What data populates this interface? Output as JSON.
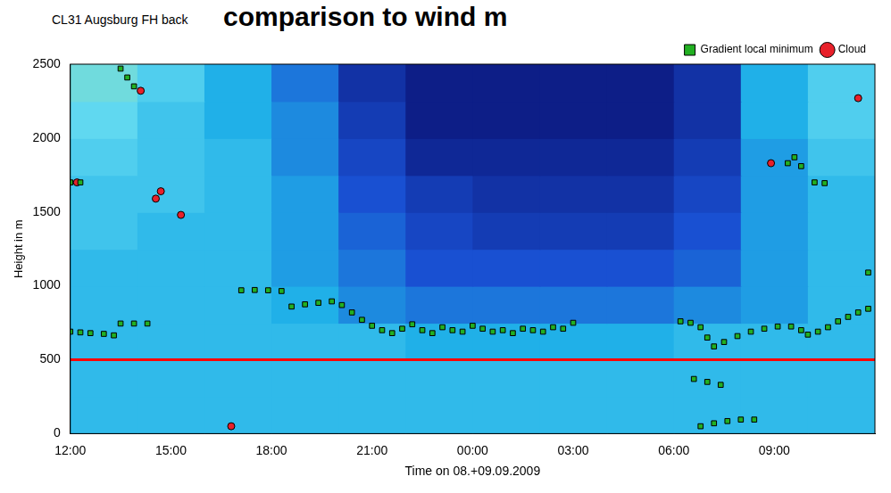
{
  "chart_data": {
    "type": "scatter",
    "title": "CL31 Augsburg FH back",
    "subtitle": "comparison to wind m",
    "x_label": "Time on 08.+09.09.2009",
    "y_label": "Height in m",
    "xlim": [
      0,
      24
    ],
    "xticks": [
      {
        "value": 0,
        "label": "12:00"
      },
      {
        "value": 3,
        "label": "15:00"
      },
      {
        "value": 6,
        "label": "18:00"
      },
      {
        "value": 9,
        "label": "21:00"
      },
      {
        "value": 12,
        "label": "00:00"
      },
      {
        "value": 15,
        "label": "03:00"
      },
      {
        "value": 18,
        "label": "06:00"
      },
      {
        "value": 21,
        "label": "09:00"
      }
    ],
    "ylim": [
      0,
      2500
    ],
    "yticks": [
      0,
      500,
      1000,
      1500,
      2000,
      2500
    ],
    "grid": false,
    "legend": "top right",
    "series": [
      {
        "name": "Gradient local minimum",
        "color": "#22b022",
        "marker": "square",
        "x": [
          0,
          0.3,
          0.6,
          1.0,
          1.3,
          1.5,
          1.9,
          2.3,
          1.5,
          1.7,
          1.9,
          5.1,
          5.5,
          5.9,
          6.3,
          6.6,
          7.0,
          7.4,
          7.8,
          8.1,
          8.4,
          8.7,
          9.0,
          9.3,
          9.6,
          9.9,
          10.2,
          10.5,
          10.8,
          11.1,
          11.4,
          11.7,
          12.0,
          12.3,
          12.6,
          12.9,
          13.2,
          13.5,
          13.8,
          14.1,
          14.4,
          14.7,
          15.0,
          18.2,
          18.5,
          18.8,
          19.0,
          18.6,
          19.0,
          19.4,
          18.8,
          19.2,
          19.6,
          20.0,
          20.4,
          19.2,
          19.5,
          19.9,
          20.3,
          20.7,
          21.1,
          21.5,
          21.8,
          22.0,
          22.3,
          22.6,
          22.9,
          23.2,
          23.5,
          23.8,
          0.0,
          0.3,
          21.4,
          21.6,
          21.8,
          22.2,
          22.5,
          23.8
        ],
        "values": [
          690,
          685,
          680,
          675,
          665,
          745,
          745,
          745,
          2470,
          2410,
          2350,
          970,
          972,
          970,
          965,
          860,
          875,
          885,
          895,
          870,
          820,
          770,
          730,
          700,
          680,
          710,
          740,
          700,
          680,
          720,
          700,
          690,
          730,
          710,
          690,
          700,
          680,
          710,
          700,
          690,
          720,
          710,
          750,
          760,
          750,
          720,
          650,
          370,
          350,
          330,
          50,
          70,
          85,
          95,
          95,
          590,
          620,
          660,
          690,
          710,
          725,
          725,
          700,
          670,
          690,
          720,
          760,
          790,
          820,
          845,
          1700,
          1700,
          1830,
          1870,
          1810,
          1700,
          1695,
          1090
        ]
      },
      {
        "name": "Cloud",
        "color": "#e8202a",
        "marker": "circle",
        "x": [
          0.2,
          2.1,
          2.55,
          2.7,
          3.3,
          4.8,
          20.9,
          23.5
        ],
        "values": [
          1700,
          2320,
          1590,
          1640,
          1480,
          50,
          1830,
          2270
        ]
      }
    ],
    "reference_line": {
      "y": 500,
      "color": "#ff0000"
    },
    "backscatter": {
      "x": [
        0,
        2,
        4,
        6,
        8,
        10,
        12,
        14,
        16,
        18,
        20,
        22,
        24
      ],
      "y": [
        0,
        250,
        500,
        750,
        1000,
        1250,
        1500,
        1750,
        2000,
        2250,
        2500
      ],
      "range": [
        0,
        1
      ],
      "values": [
        [
          0.6,
          0.6,
          0.6,
          0.6,
          0.6,
          0.6,
          0.6,
          0.6,
          0.6,
          0.6,
          0.6,
          0.6
        ],
        [
          0.6,
          0.6,
          0.6,
          0.6,
          0.6,
          0.6,
          0.6,
          0.6,
          0.6,
          0.6,
          0.6,
          0.6
        ],
        [
          0.6,
          0.6,
          0.6,
          0.6,
          0.6,
          0.55,
          0.55,
          0.55,
          0.55,
          0.6,
          0.6,
          0.6
        ],
        [
          0.6,
          0.6,
          0.6,
          0.55,
          0.45,
          0.4,
          0.4,
          0.4,
          0.4,
          0.45,
          0.5,
          0.6
        ],
        [
          0.6,
          0.6,
          0.6,
          0.5,
          0.4,
          0.3,
          0.3,
          0.3,
          0.3,
          0.35,
          0.5,
          0.6
        ],
        [
          0.65,
          0.6,
          0.6,
          0.5,
          0.35,
          0.25,
          0.2,
          0.2,
          0.2,
          0.3,
          0.5,
          0.6
        ],
        [
          0.65,
          0.65,
          0.6,
          0.5,
          0.3,
          0.2,
          0.15,
          0.15,
          0.15,
          0.25,
          0.5,
          0.6
        ],
        [
          0.7,
          0.65,
          0.6,
          0.45,
          0.25,
          0.1,
          0.1,
          0.1,
          0.1,
          0.2,
          0.5,
          0.65
        ],
        [
          0.75,
          0.65,
          0.55,
          0.45,
          0.2,
          0.05,
          0.05,
          0.05,
          0.05,
          0.15,
          0.55,
          0.7
        ],
        [
          0.8,
          0.7,
          0.55,
          0.4,
          0.15,
          0.05,
          0.05,
          0.05,
          0.05,
          0.15,
          0.55,
          0.7
        ]
      ]
    }
  }
}
